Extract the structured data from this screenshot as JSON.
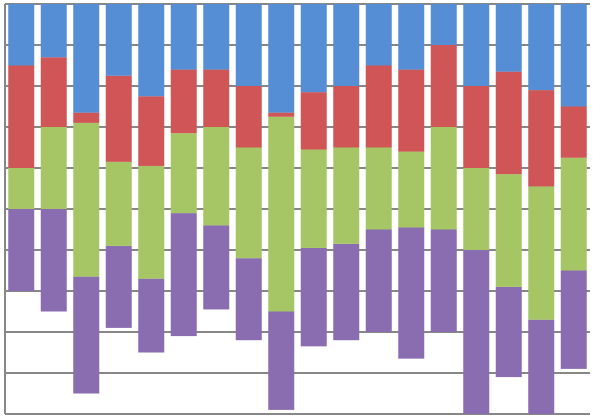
{
  "chart_data": {
    "type": "bar",
    "stacked": true,
    "categories": [
      null,
      null,
      null,
      null,
      null,
      null,
      null,
      null,
      null,
      null,
      null,
      null,
      null,
      null,
      null,
      null,
      null,
      null
    ],
    "series": [
      {
        "color": "none",
        "values": [
          3.0,
          2.5,
          0.5,
          2.1,
          1.5,
          1.9,
          2.55,
          1.8,
          0.1,
          1.65,
          1.8,
          2.0,
          1.35,
          2.0,
          0,
          0.9,
          0,
          1.1
        ]
      },
      {
        "color": "#8a6db1",
        "values": [
          2.0,
          2.5,
          2.85,
          2.0,
          1.8,
          3.0,
          2.05,
          2.0,
          2.4,
          2.4,
          2.35,
          2.5,
          3.2,
          2.5,
          4.0,
          2.2,
          2.3,
          2.4
        ]
      },
      {
        "color": "#a6c665",
        "values": [
          1.0,
          2.0,
          3.75,
          2.05,
          2.75,
          1.95,
          2.4,
          2.7,
          4.75,
          2.4,
          2.35,
          2.0,
          1.85,
          2.5,
          2.0,
          2.75,
          3.25,
          2.75
        ]
      },
      {
        "color": "#d05556",
        "values": [
          2.5,
          1.7,
          0.25,
          2.1,
          1.7,
          1.55,
          1.4,
          1.5,
          0.1,
          1.4,
          1.5,
          2.0,
          2.0,
          2.0,
          2.0,
          2.5,
          2.35,
          1.25
        ]
      },
      {
        "color": "#558ed5",
        "values": [
          1.5,
          1.3,
          2.65,
          1.75,
          2.25,
          1.6,
          1.6,
          2.0,
          2.65,
          2.15,
          2.0,
          1.5,
          1.6,
          1.0,
          2.0,
          1.65,
          2.1,
          2.5
        ]
      }
    ],
    "ylim": [
      0,
      10
    ],
    "yticks": [
      0,
      1,
      2,
      3,
      4,
      5,
      6,
      7,
      8,
      9,
      10
    ],
    "grid": true
  }
}
